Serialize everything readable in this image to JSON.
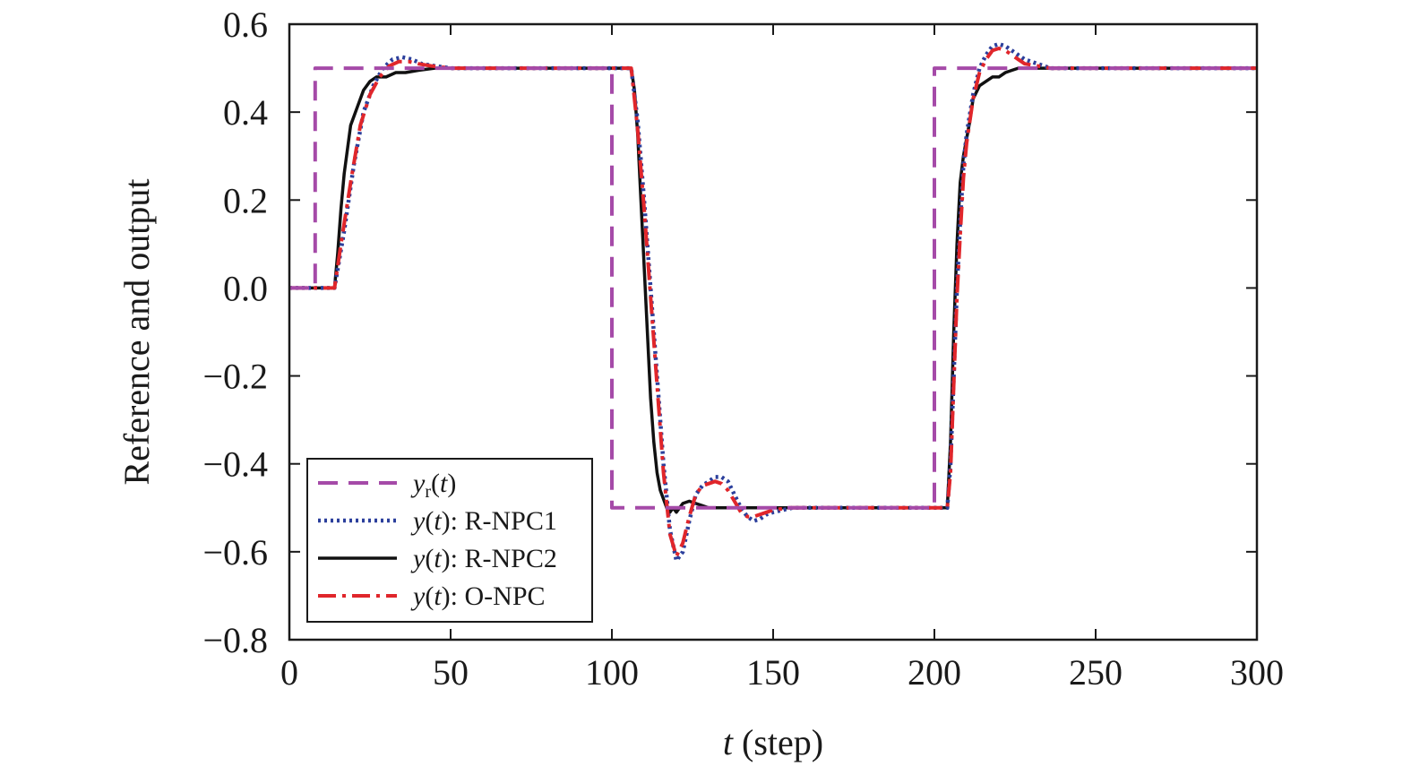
{
  "chart_data": {
    "type": "line",
    "xlabel": {
      "var": "t",
      "rest": " (step)"
    },
    "ylabel": "Reference and output",
    "xlim": [
      0,
      300
    ],
    "ylim": [
      -0.8,
      0.6
    ],
    "xticks": [
      0,
      50,
      100,
      150,
      200,
      250,
      300
    ],
    "yticks": [
      0.6,
      0.4,
      0.2,
      0.0,
      -0.2,
      -0.4,
      -0.6,
      -0.8
    ],
    "xtick_labels": [
      "0",
      "50",
      "100",
      "150",
      "200",
      "250",
      "300"
    ],
    "ytick_labels": [
      "0.6",
      "0.4",
      "0.2",
      "0.0",
      "−0.2",
      "−0.4",
      "−0.6",
      "−0.8"
    ],
    "grid": false,
    "legend_position": "bottom-left",
    "series": [
      {
        "key": "yr",
        "name": {
          "var": "y",
          "sub": "r",
          "mid": "(",
          "var2": "t",
          "tail": ")"
        },
        "color": "#a54aa8",
        "style": "dashed",
        "x": [
          0,
          8,
          8,
          100,
          100,
          200,
          200,
          300
        ],
        "y": [
          0,
          0,
          0.5,
          0.5,
          -0.5,
          -0.5,
          0.5,
          0.5
        ]
      },
      {
        "key": "rnpc1",
        "name": {
          "var": "y",
          "mid": "(",
          "var2": "t",
          "tail": "): R-NPC1"
        },
        "color": "#2b3f9c",
        "style": "dotted",
        "x": [
          0,
          14,
          17,
          20,
          23,
          26,
          29,
          32,
          35,
          38,
          41,
          45,
          50,
          60,
          80,
          100,
          106,
          108,
          110,
          112,
          114,
          116,
          118,
          120,
          122,
          124,
          126,
          128,
          130,
          132,
          134,
          136,
          138,
          140,
          142,
          144,
          146,
          148,
          150,
          153,
          156,
          160,
          170,
          190,
          204,
          205,
          206,
          207,
          208,
          209,
          210,
          212,
          214,
          216,
          218,
          220,
          222,
          224,
          226,
          228,
          232,
          236,
          240,
          250,
          300
        ],
        "y": [
          0,
          0,
          0.13,
          0.28,
          0.4,
          0.46,
          0.5,
          0.52,
          0.525,
          0.52,
          0.51,
          0.505,
          0.5,
          0.5,
          0.5,
          0.5,
          0.5,
          0.38,
          0.2,
          0.0,
          -0.2,
          -0.4,
          -0.55,
          -0.62,
          -0.6,
          -0.53,
          -0.47,
          -0.45,
          -0.44,
          -0.43,
          -0.43,
          -0.44,
          -0.47,
          -0.5,
          -0.52,
          -0.53,
          -0.525,
          -0.515,
          -0.51,
          -0.505,
          -0.5,
          -0.5,
          -0.5,
          -0.5,
          -0.5,
          -0.4,
          -0.2,
          0.0,
          0.15,
          0.28,
          0.35,
          0.44,
          0.5,
          0.53,
          0.55,
          0.555,
          0.55,
          0.54,
          0.53,
          0.52,
          0.51,
          0.5,
          0.5,
          0.5,
          0.5
        ]
      },
      {
        "key": "rnpc2",
        "name": {
          "var": "y",
          "mid": "(",
          "var2": "t",
          "tail": "): R-NPC2"
        },
        "color": "#111111",
        "style": "solid",
        "x": [
          0,
          14,
          15,
          16,
          17,
          19,
          21,
          23,
          25,
          27,
          30,
          33,
          36,
          40,
          45,
          50,
          80,
          100,
          106,
          107,
          108,
          109,
          110,
          111,
          112,
          113,
          114,
          115,
          116,
          117,
          118,
          119,
          120,
          122,
          124,
          126,
          128,
          130,
          135,
          140,
          150,
          160,
          180,
          204,
          205,
          206,
          207,
          208,
          209,
          210,
          211,
          212,
          214,
          216,
          218,
          220,
          222,
          224,
          226,
          230,
          240,
          300
        ],
        "y": [
          0,
          0,
          0.08,
          0.18,
          0.26,
          0.37,
          0.41,
          0.45,
          0.47,
          0.48,
          0.48,
          0.49,
          0.49,
          0.495,
          0.5,
          0.5,
          0.5,
          0.5,
          0.5,
          0.45,
          0.35,
          0.2,
          0.05,
          -0.1,
          -0.25,
          -0.35,
          -0.42,
          -0.46,
          -0.48,
          -0.5,
          -0.51,
          -0.5,
          -0.51,
          -0.49,
          -0.485,
          -0.49,
          -0.495,
          -0.5,
          -0.5,
          -0.5,
          -0.5,
          -0.5,
          -0.5,
          -0.5,
          -0.35,
          -0.1,
          0.1,
          0.24,
          0.3,
          0.34,
          0.38,
          0.43,
          0.46,
          0.47,
          0.48,
          0.48,
          0.49,
          0.495,
          0.5,
          0.5,
          0.5,
          0.5
        ]
      },
      {
        "key": "onpc",
        "name": {
          "var": "y",
          "mid": "(",
          "var2": "t",
          "tail": "): O-NPC"
        },
        "color": "#e0262b",
        "style": "dashdot",
        "x": [
          0,
          14,
          16,
          19,
          22,
          25,
          28,
          31,
          34,
          37,
          40,
          44,
          50,
          60,
          80,
          100,
          106,
          108,
          110,
          112,
          114,
          116,
          118,
          120,
          122,
          124,
          126,
          128,
          130,
          132,
          134,
          136,
          138,
          140,
          142,
          144,
          146,
          148,
          150,
          155,
          160,
          170,
          190,
          204,
          205,
          206,
          207,
          208,
          209,
          210,
          212,
          214,
          216,
          218,
          220,
          222,
          224,
          226,
          228,
          232,
          236,
          240,
          250,
          300
        ],
        "y": [
          0,
          0,
          0.1,
          0.24,
          0.37,
          0.44,
          0.48,
          0.505,
          0.515,
          0.515,
          0.51,
          0.505,
          0.5,
          0.5,
          0.5,
          0.5,
          0.5,
          0.36,
          0.18,
          -0.02,
          -0.22,
          -0.42,
          -0.56,
          -0.61,
          -0.58,
          -0.52,
          -0.47,
          -0.45,
          -0.445,
          -0.44,
          -0.445,
          -0.46,
          -0.485,
          -0.51,
          -0.52,
          -0.52,
          -0.515,
          -0.51,
          -0.505,
          -0.5,
          -0.5,
          -0.5,
          -0.5,
          -0.5,
          -0.42,
          -0.22,
          -0.02,
          0.12,
          0.25,
          0.33,
          0.43,
          0.49,
          0.52,
          0.54,
          0.545,
          0.54,
          0.53,
          0.52,
          0.51,
          0.505,
          0.5,
          0.5,
          0.5,
          0.5
        ]
      }
    ]
  }
}
